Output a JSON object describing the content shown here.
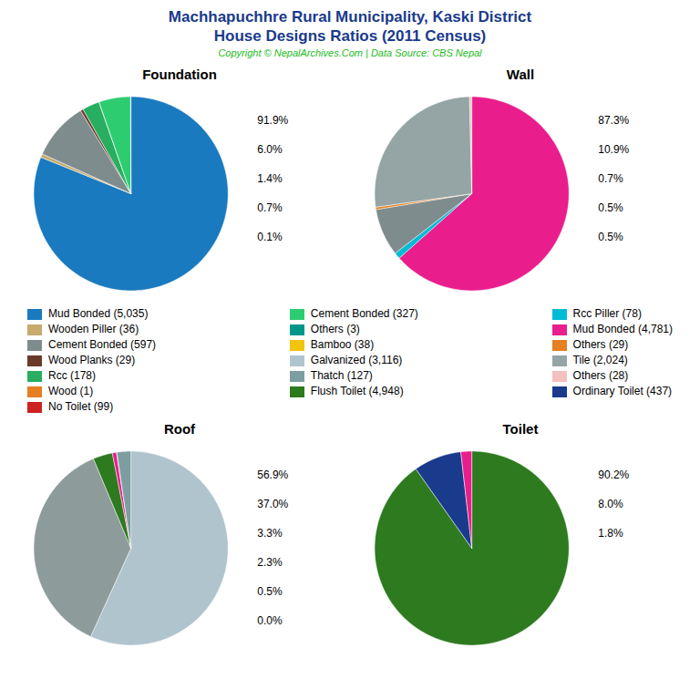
{
  "title": "Machhapuchhre Rural Municipality, Kaski District",
  "subtitle": "House Designs Ratios (2011 Census)",
  "caption": "Copyright © NepalArchives.Com | Data Source: CBS Nepal",
  "chart_data": [
    {
      "type": "pie",
      "title": "Foundation",
      "values": [
        5035,
        36,
        597,
        29,
        178,
        1,
        327,
        3
      ],
      "colors": [
        "#1a7abf",
        "#c8a96e",
        "#7f8c8d",
        "#6b3a2a",
        "#27ae60",
        "#e67e22",
        "#2ecc71",
        "#00bcd4"
      ],
      "annotations": [
        "91.9%",
        "6.0%",
        "1.4%",
        "0.7%",
        "0.1%"
      ]
    },
    {
      "type": "pie",
      "title": "Wall",
      "values": [
        4781,
        78,
        597,
        29,
        2024,
        28
      ],
      "colors": [
        "#e91e8c",
        "#00bcd4",
        "#7f8c8d",
        "#e67e22",
        "#95a5a6",
        "#f4c0c0"
      ],
      "annotations": [
        "87.3%",
        "10.9%",
        "0.7%",
        "0.5%",
        "0.5%"
      ]
    },
    {
      "type": "legend",
      "columns": [
        [
          {
            "name": "Mud Bonded (5,035)",
            "color": "#1a7abf"
          },
          {
            "name": "Wooden Piller (36)",
            "color": "#c8a96e"
          },
          {
            "name": "Cement Bonded (597)",
            "color": "#7f8c8d"
          },
          {
            "name": "Wood Planks (29)",
            "color": "#6b3a2a"
          },
          {
            "name": "Rcc (178)",
            "color": "#27ae60"
          },
          {
            "name": "Wood (1)",
            "color": "#e67e22"
          },
          {
            "name": "No Toilet (99)",
            "color": "#cc2222"
          }
        ],
        [
          {
            "name": "Cement Bonded (327)",
            "color": "#2ecc71"
          },
          {
            "name": "Others (3)",
            "color": "#009688"
          },
          {
            "name": "Bamboo (38)",
            "color": "#f1c40f"
          },
          {
            "name": "Galvanized (3,116)",
            "color": "#b0c4ce"
          },
          {
            "name": "Thatch (127)",
            "color": "#7d9ea0"
          },
          {
            "name": "Flush Toilet (4,948)",
            "color": "#2d7a1f"
          }
        ],
        [
          {
            "name": "Rcc Piller (78)",
            "color": "#00bcd4"
          },
          {
            "name": "Mud Bonded (4,781)",
            "color": "#e91e8c"
          },
          {
            "name": "Others (29)",
            "color": "#e67e22"
          },
          {
            "name": "Tile (2,024)",
            "color": "#95a5a6"
          },
          {
            "name": "Others (28)",
            "color": "#f4c0c0"
          },
          {
            "name": "Ordinary Toilet (437)",
            "color": "#1a3a8c"
          }
        ]
      ]
    },
    {
      "type": "pie",
      "title": "Roof",
      "values": [
        3116,
        2024,
        178,
        38,
        3,
        127
      ],
      "colors": [
        "#b0c4ce",
        "#8d9b9b",
        "#2d7a1f",
        "#e91e8c",
        "#00bcd4",
        "#7d9ea0"
      ],
      "annotations": [
        "56.9%",
        "37.0%",
        "3.3%",
        "2.3%",
        "0.5%",
        "0.0%"
      ]
    },
    {
      "type": "pie",
      "title": "Toilet",
      "values": [
        4948,
        437,
        99
      ],
      "colors": [
        "#2d7a1f",
        "#1a3a8c",
        "#e91e8c"
      ],
      "annotations": [
        "90.2%",
        "8.0%",
        "1.8%"
      ]
    }
  ]
}
